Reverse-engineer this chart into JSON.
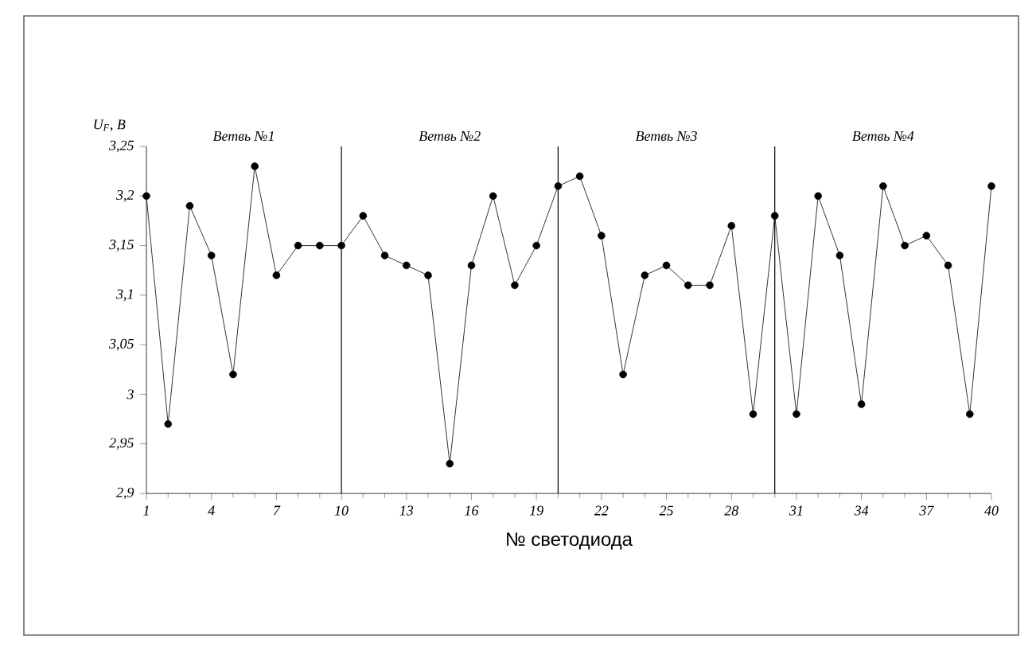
{
  "chart_data": {
    "type": "line",
    "ylabel": "U$_{F}$, B",
    "xlabel": "№ светодиода",
    "annotations": [
      "Ветвь №1",
      "Ветвь №2",
      "Ветвь №3",
      "Ветвь №4"
    ],
    "x": [
      1,
      2,
      3,
      4,
      5,
      6,
      7,
      8,
      9,
      10,
      11,
      12,
      13,
      14,
      15,
      16,
      17,
      18,
      19,
      20,
      21,
      22,
      23,
      24,
      25,
      26,
      27,
      28,
      29,
      30,
      31,
      32,
      33,
      34,
      35,
      36,
      37,
      38,
      39,
      40
    ],
    "values": [
      3.2,
      2.97,
      3.19,
      3.14,
      3.02,
      3.23,
      3.12,
      3.15,
      3.15,
      3.15,
      3.18,
      3.14,
      3.13,
      3.12,
      2.93,
      3.13,
      3.2,
      3.11,
      3.15,
      3.21,
      3.22,
      3.16,
      3.02,
      3.12,
      3.13,
      3.11,
      3.11,
      3.17,
      2.98,
      3.18,
      2.98,
      3.2,
      3.14,
      2.99,
      3.21,
      3.15,
      3.16,
      3.13,
      2.98,
      3.21
    ],
    "color": "#000000",
    "marker": "circle",
    "line_style": "solid",
    "grid": false,
    "xlim": [
      1,
      40
    ],
    "ylim": [
      2.9,
      3.25
    ],
    "xticks": [
      1,
      4,
      7,
      10,
      13,
      16,
      19,
      22,
      25,
      28,
      31,
      34,
      37,
      40
    ],
    "yticks": [
      {
        "value": 2.9,
        "label": "2,9"
      },
      {
        "value": 2.95,
        "label": "2,95"
      },
      3,
      {
        "value": 3.05,
        "label": "3,05"
      },
      {
        "value": 3.1,
        "label": "3,1"
      },
      {
        "value": 3.15,
        "label": "3,15"
      },
      {
        "value": 3.2,
        "label": "3,2"
      },
      {
        "value": 3.25,
        "label": "3,25"
      }
    ],
    "ref_lines": [
      {
        "axis": "x",
        "value": 10,
        "color": "#000000"
      },
      {
        "axis": "x",
        "value": 20,
        "color": "#000000"
      },
      {
        "axis": "x",
        "value": 30,
        "color": "#000000"
      }
    ]
  }
}
